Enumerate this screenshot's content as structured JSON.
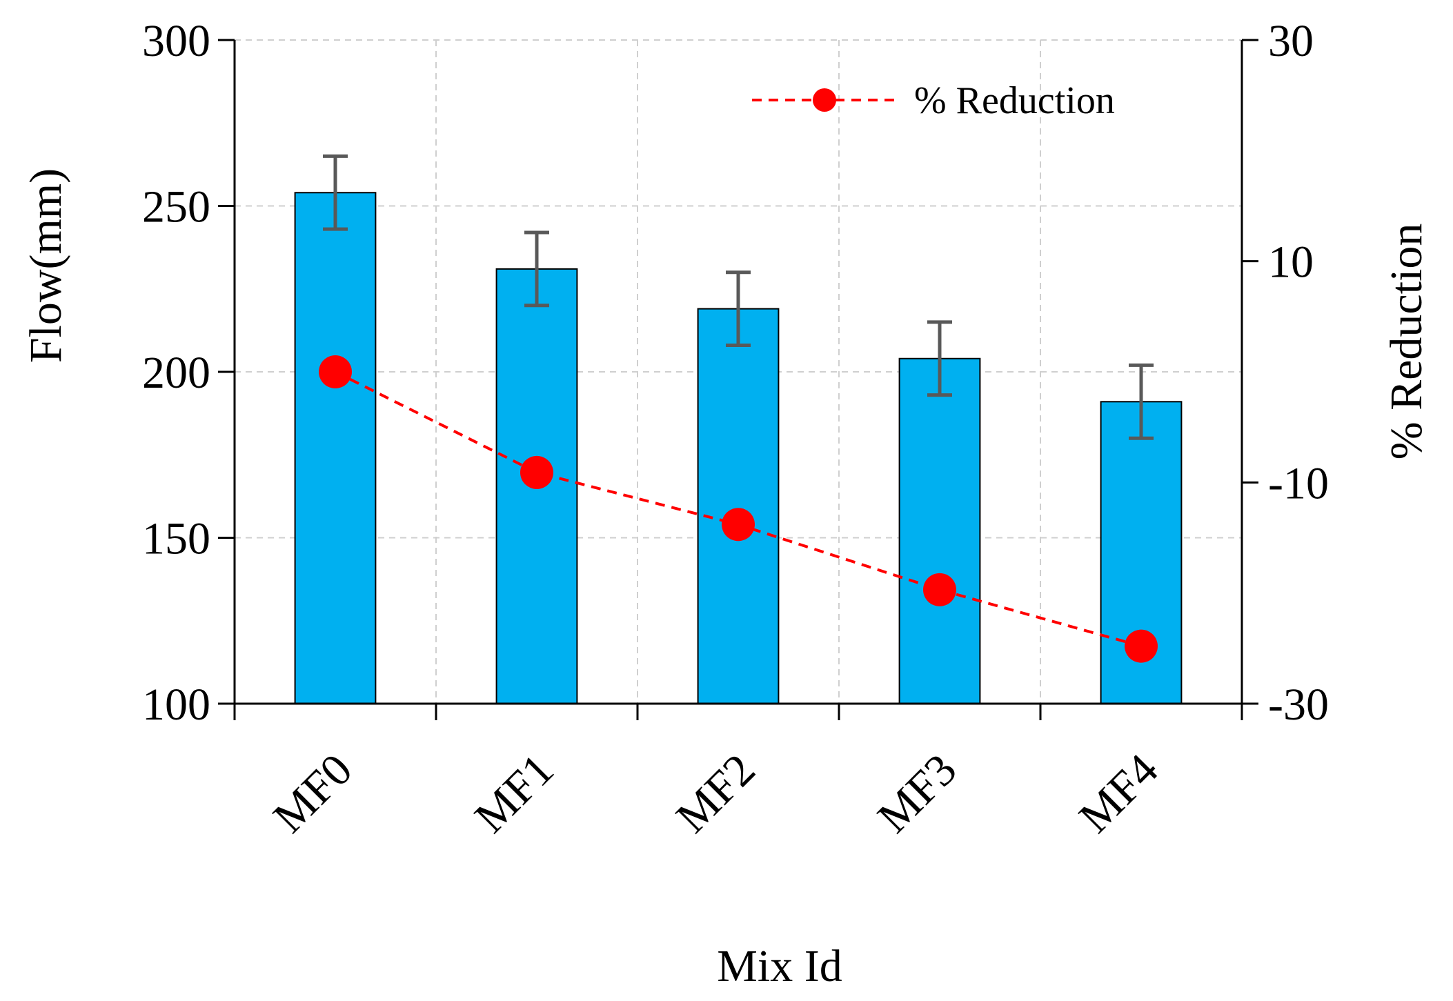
{
  "chart_data": {
    "type": "bar",
    "title": "",
    "xlabel": "Mix Id",
    "ylabel": "Flow(mm)",
    "y2label": "% Reduction",
    "categories": [
      "MF0",
      "MF1",
      "MF2",
      "MF3",
      "MF4"
    ],
    "ylim": [
      100,
      300
    ],
    "yticks": [
      100,
      150,
      200,
      250,
      300
    ],
    "y2lim": [
      -30,
      30
    ],
    "y2ticks": [
      -30,
      -10,
      10,
      30
    ],
    "grid": true,
    "legend": "top-right",
    "series": [
      {
        "name": "Flow",
        "type": "bar",
        "axis": "left",
        "values": [
          254,
          231,
          219,
          204,
          191
        ],
        "error": [
          11,
          11,
          11,
          11,
          11
        ],
        "color": "#00B0F0"
      },
      {
        "name": "% Reduction",
        "type": "line",
        "axis": "right",
        "style": "dashed",
        "marker": "circle",
        "values": [
          0,
          -9.1,
          -13.8,
          -19.7,
          -24.8
        ],
        "color": "#FF0000"
      }
    ]
  }
}
